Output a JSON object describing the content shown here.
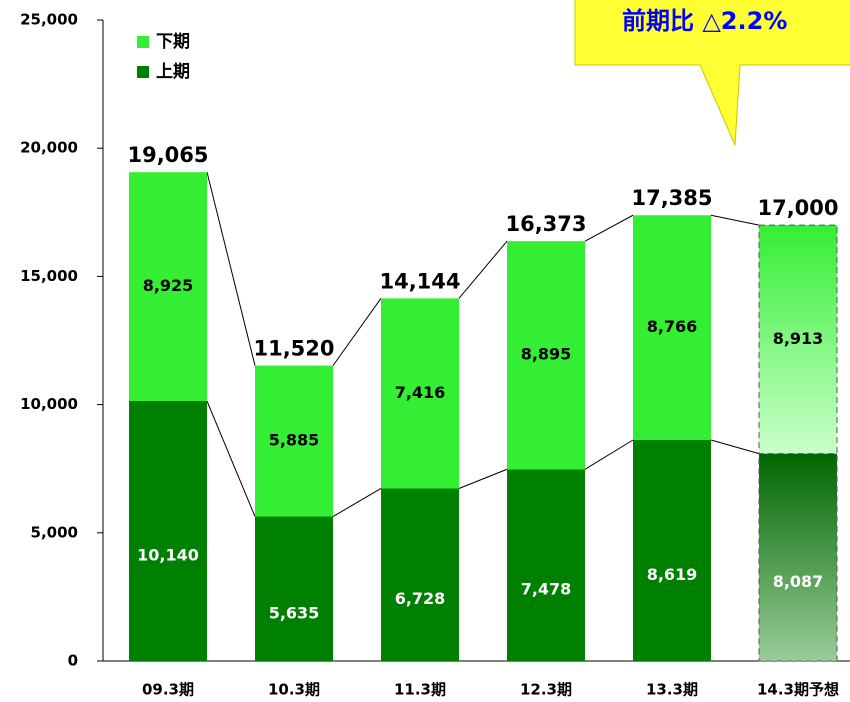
{
  "chart_data": {
    "type": "stacked_bar",
    "annotation": "前期比 △2.2%",
    "categories": [
      "09.3期",
      "10.3期",
      "11.3期",
      "12.3期",
      "13.3期",
      "14.3期予想"
    ],
    "series": [
      {
        "name": "上期",
        "color": "#008000",
        "values": [
          10140,
          5635,
          6728,
          7478,
          8619,
          8087
        ],
        "value_labels": [
          "10,140",
          "5,635",
          "6,728",
          "7,478",
          "8,619",
          "8,087"
        ]
      },
      {
        "name": "下期",
        "color": "#33ee33",
        "values": [
          8925,
          5885,
          7416,
          8895,
          8766,
          8913
        ],
        "value_labels": [
          "8,925",
          "5,885",
          "7,416",
          "8,895",
          "8,766",
          "8,913"
        ]
      }
    ],
    "totals": [
      {
        "value": 19065,
        "label": "19,065"
      },
      {
        "value": 11520,
        "label": "11,520"
      },
      {
        "value": 14144,
        "label": "14,144"
      },
      {
        "value": 16373,
        "label": "16,373"
      },
      {
        "value": 17385,
        "label": "17,385"
      },
      {
        "value": 17000,
        "label": "17,000"
      }
    ],
    "ylim": [
      0,
      25000
    ],
    "yticks": [
      {
        "value": 0,
        "label": "0"
      },
      {
        "value": 5000,
        "label": "5,000"
      },
      {
        "value": 10000,
        "label": "10,000"
      },
      {
        "value": 15000,
        "label": "15,000"
      },
      {
        "value": 20000,
        "label": "20,000"
      },
      {
        "value": 25000,
        "label": "25,000"
      }
    ]
  }
}
